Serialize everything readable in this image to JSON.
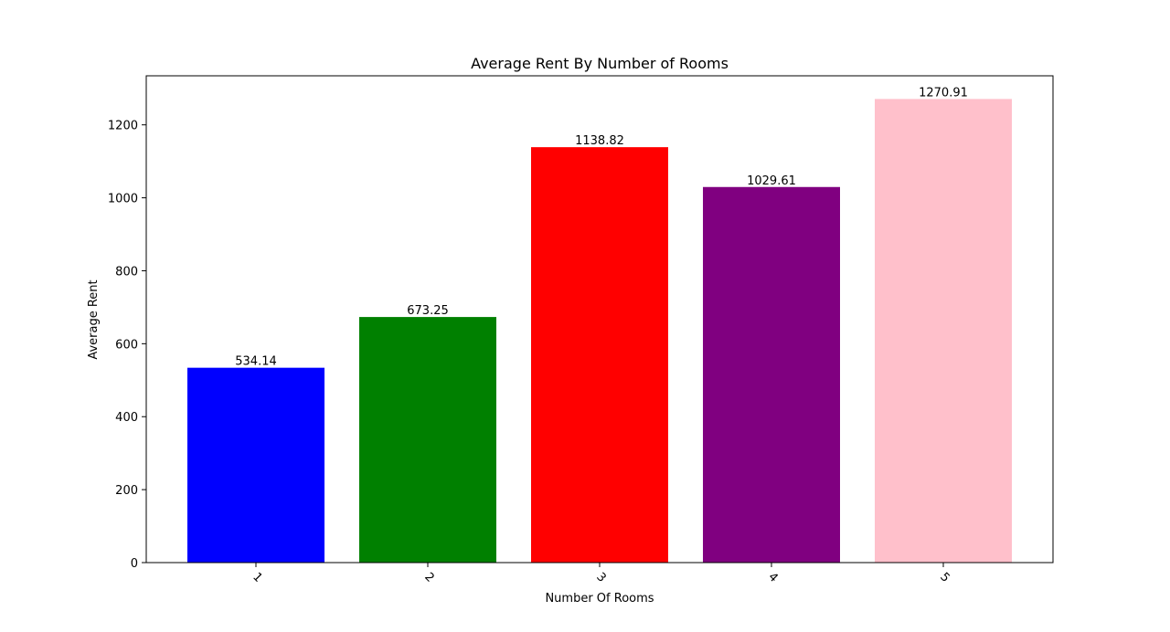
{
  "chart_data": {
    "type": "bar",
    "title": "Average Rent By Number of Rooms",
    "xlabel": "Number Of Rooms",
    "ylabel": "Average Rent",
    "categories": [
      "1",
      "2",
      "3",
      "4",
      "5"
    ],
    "values": [
      534.14,
      673.25,
      1138.82,
      1029.61,
      1270.91
    ],
    "value_labels": [
      "534.14",
      "673.25",
      "1138.82",
      "1029.61",
      "1270.91"
    ],
    "colors": [
      "#0000ff",
      "#008000",
      "#ff0000",
      "#800080",
      "#ffc0cb"
    ],
    "ylim": [
      0,
      1334.46
    ],
    "yticks": [
      0,
      200,
      400,
      600,
      800,
      1000,
      1200
    ],
    "ytick_labels": [
      "0",
      "200",
      "400",
      "600",
      "800",
      "1000",
      "1200"
    ],
    "xtick_rotation": 45,
    "grid": false,
    "legend": "none"
  }
}
